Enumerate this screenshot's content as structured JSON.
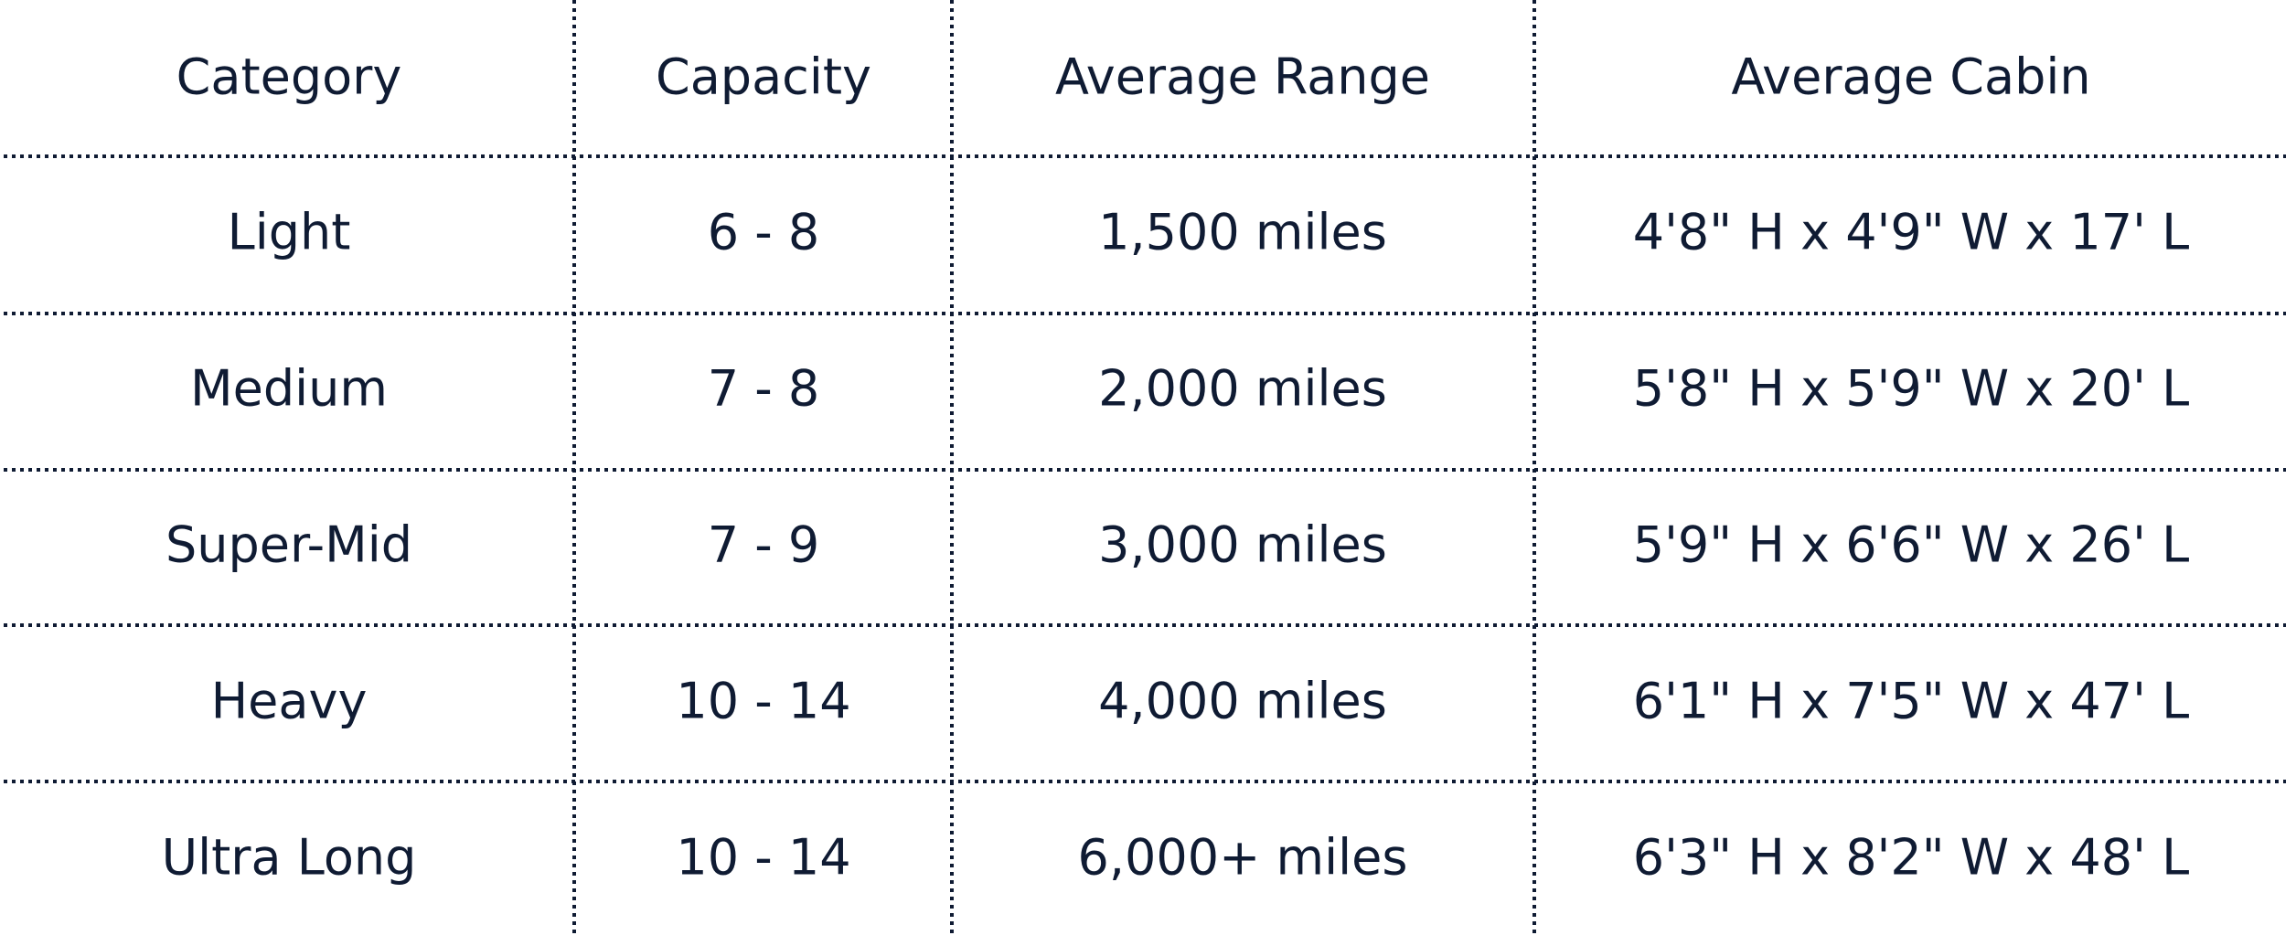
{
  "table": {
    "header": [
      "Category",
      "Capacity",
      "Average Range",
      "Average Cabin"
    ],
    "rows": [
      [
        "Light",
        "6 - 8",
        "1,500 miles",
        "4'8\" H x 4'9\" W x 17' L"
      ],
      [
        "Medium",
        "7 - 8",
        "2,000 miles",
        "5'8\" H x 5'9\" W x 20' L"
      ],
      [
        "Super-Mid",
        "7 - 9",
        "3,000 miles",
        "5'9\" H x 6'6\" W x 26' L"
      ],
      [
        "Heavy",
        "10 - 14",
        "4,000 miles",
        "6'1\" H x 7'5\" W x 47' L"
      ],
      [
        "Ultra Long",
        "10 - 14",
        "6,000+ miles",
        "6'3\" H x 8'2\" W x 48' L"
      ]
    ]
  }
}
